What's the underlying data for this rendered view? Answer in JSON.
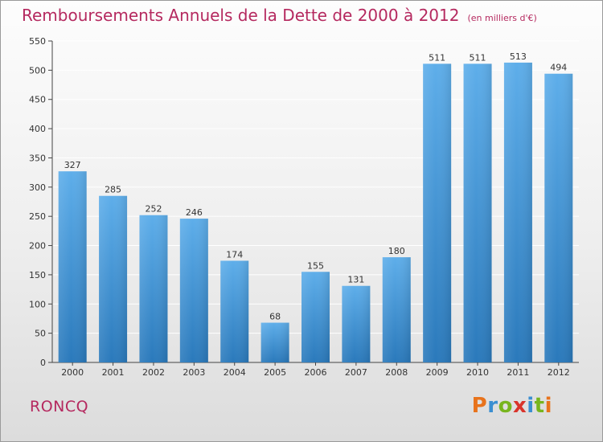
{
  "title": "Remboursements Annuels de la Dette de 2000 à 2012",
  "subtitle": "(en milliers d'€)",
  "commune": "RONCQ",
  "logo": {
    "text": "Proxiti",
    "letters": [
      {
        "char": "P",
        "color": "#e8731c"
      },
      {
        "char": "r",
        "color": "#3b8fd1"
      },
      {
        "char": "o",
        "color": "#78b51e"
      },
      {
        "char": "x",
        "color": "#d9342b"
      },
      {
        "char": "i",
        "color": "#3b8fd1"
      },
      {
        "char": "t",
        "color": "#78b51e"
      },
      {
        "char": "i",
        "color": "#e8731c"
      }
    ]
  },
  "colors": {
    "title": "#b5295f",
    "bar_top": "#5eaeea",
    "bar_bottom": "#2a79bb",
    "grid": "#ffffff"
  },
  "chart_data": {
    "type": "bar",
    "categories": [
      "2000",
      "2001",
      "2002",
      "2003",
      "2004",
      "2005",
      "2006",
      "2007",
      "2008",
      "2009",
      "2010",
      "2011",
      "2012"
    ],
    "values": [
      327,
      285,
      252,
      246,
      174,
      68,
      155,
      131,
      180,
      511,
      511,
      513,
      494
    ],
    "ylim": [
      0,
      550
    ],
    "yticks": [
      0,
      50,
      100,
      150,
      200,
      250,
      300,
      350,
      400,
      450,
      500,
      550
    ],
    "grid": true,
    "legend": "none"
  }
}
